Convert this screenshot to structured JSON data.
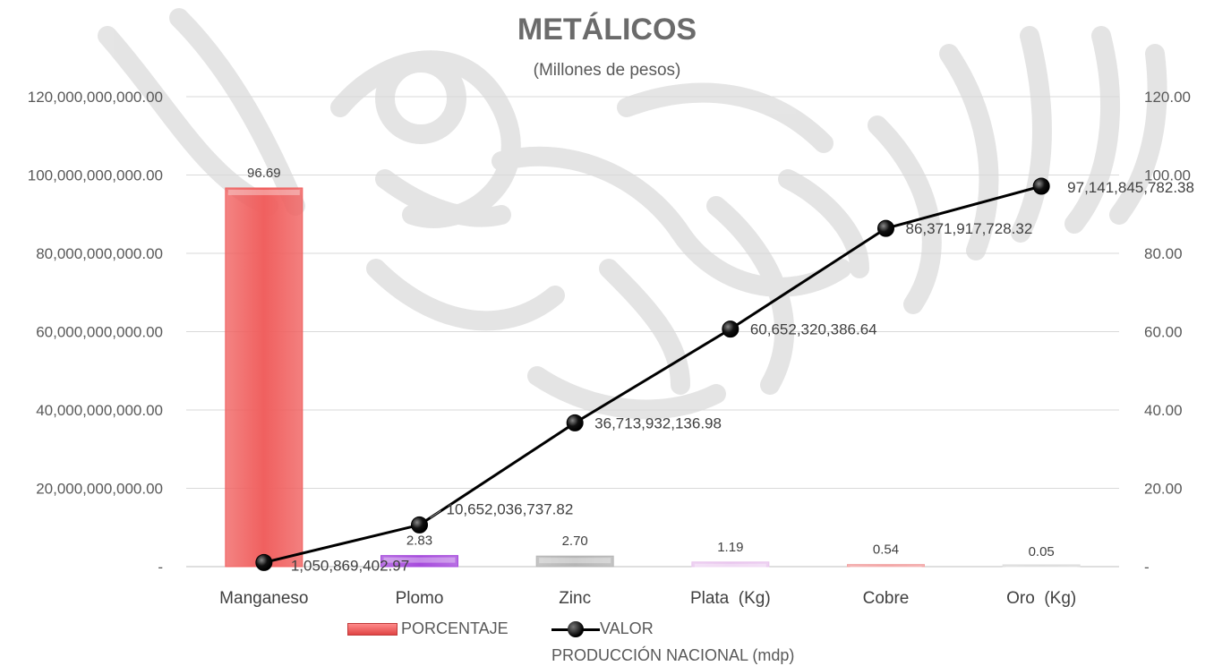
{
  "chart_data": {
    "type": "bar",
    "title": "METÁLICOS",
    "subtitle": "(Millones de pesos)",
    "categories": [
      "Manganeso",
      "Plomo",
      "Zinc",
      "Plata  (Kg)",
      "Cobre",
      "Oro  (Kg)"
    ],
    "series": [
      {
        "name": "PORCENTAJE",
        "chart_type": "bar",
        "axis": "right",
        "values": [
          96.69,
          2.83,
          2.7,
          1.19,
          0.54,
          0.05
        ],
        "labels": [
          "96.69",
          "2.83",
          "2.70",
          "1.19",
          "0.54",
          "0.05"
        ],
        "colors": [
          "#f0605f",
          "#a64bdc",
          "#b5b5b5",
          "#e9c6ee",
          "#f2a3a3",
          "#dddddd"
        ]
      },
      {
        "name": "VALOR",
        "name_line2": "PRODUCCIÓN NACIONAL (mdp)",
        "chart_type": "line",
        "axis": "left",
        "values": [
          1050869402.97,
          10652036737.82,
          36713932136.98,
          60652320386.64,
          86371917728.32,
          97141845782.38
        ],
        "labels": [
          "1,050,869,402.97",
          "10,652,036,737.82",
          "36,713,932,136.98",
          "60,652,320,386.64",
          "86,371,917,728.32",
          "97,141,845,782.38"
        ],
        "color": "#000000"
      }
    ],
    "y_left": {
      "min": 0,
      "max": 120000000000,
      "ticks": [
        0,
        20000000000,
        40000000000,
        60000000000,
        80000000000,
        100000000000,
        120000000000
      ],
      "tick_labels": [
        "-",
        "20,000,000,000.00",
        "40,000,000,000.00",
        "60,000,000,000.00",
        "80,000,000,000.00",
        "100,000,000,000.00",
        "120,000,000,000.00"
      ]
    },
    "y_right": {
      "min": 0,
      "max": 120,
      "ticks": [
        0,
        20,
        40,
        60,
        80,
        100,
        120
      ],
      "tick_labels": [
        "-",
        "20.00",
        "40.00",
        "60.00",
        "80.00",
        "100.00",
        "120.00"
      ]
    },
    "grid": true,
    "legend_position": "bottom"
  }
}
